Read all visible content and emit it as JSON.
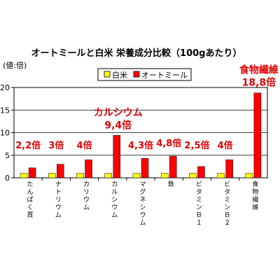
{
  "chart_data": {
    "type": "bar",
    "title": "オートミールと白米 栄養成分比較（100gあたり）",
    "ylabel": "(値:倍)",
    "ylim": [
      0,
      20
    ],
    "yticks": [
      0,
      5,
      10,
      15,
      20
    ],
    "grid": true,
    "legend_position": "top",
    "categories": [
      "たんぱく質",
      "ナトリウム",
      "カリウム",
      "カルシウム",
      "マグネシウム",
      "鉄",
      "ビタミンＢ１",
      "ビタミンＢ２",
      "食物繊維"
    ],
    "series": [
      {
        "name": "白米",
        "color": "#ffff00",
        "values": [
          1,
          1,
          1,
          1,
          1,
          1,
          1,
          1,
          1
        ]
      },
      {
        "name": "オートミール",
        "color": "#ff0000",
        "values": [
          2.2,
          3,
          4,
          9.4,
          4.3,
          4.8,
          2.5,
          4,
          18.8
        ]
      }
    ],
    "annotations": [
      {
        "category_index": 0,
        "text": "2,2倍",
        "big": false
      },
      {
        "category_index": 1,
        "text": "3倍",
        "big": false
      },
      {
        "category_index": 2,
        "text": "4倍",
        "big": false
      },
      {
        "category_index": 3,
        "text": "カルシウム",
        "text2": "9,4倍",
        "big": true
      },
      {
        "category_index": 4,
        "text": "4,3倍",
        "big": false
      },
      {
        "category_index": 5,
        "text": "4,8倍",
        "big": false
      },
      {
        "category_index": 6,
        "text": "2,5倍",
        "big": false
      },
      {
        "category_index": 7,
        "text": "4倍",
        "big": false
      },
      {
        "category_index": 8,
        "text": "食物繊維",
        "text2": "18,8倍",
        "big": true
      }
    ]
  }
}
